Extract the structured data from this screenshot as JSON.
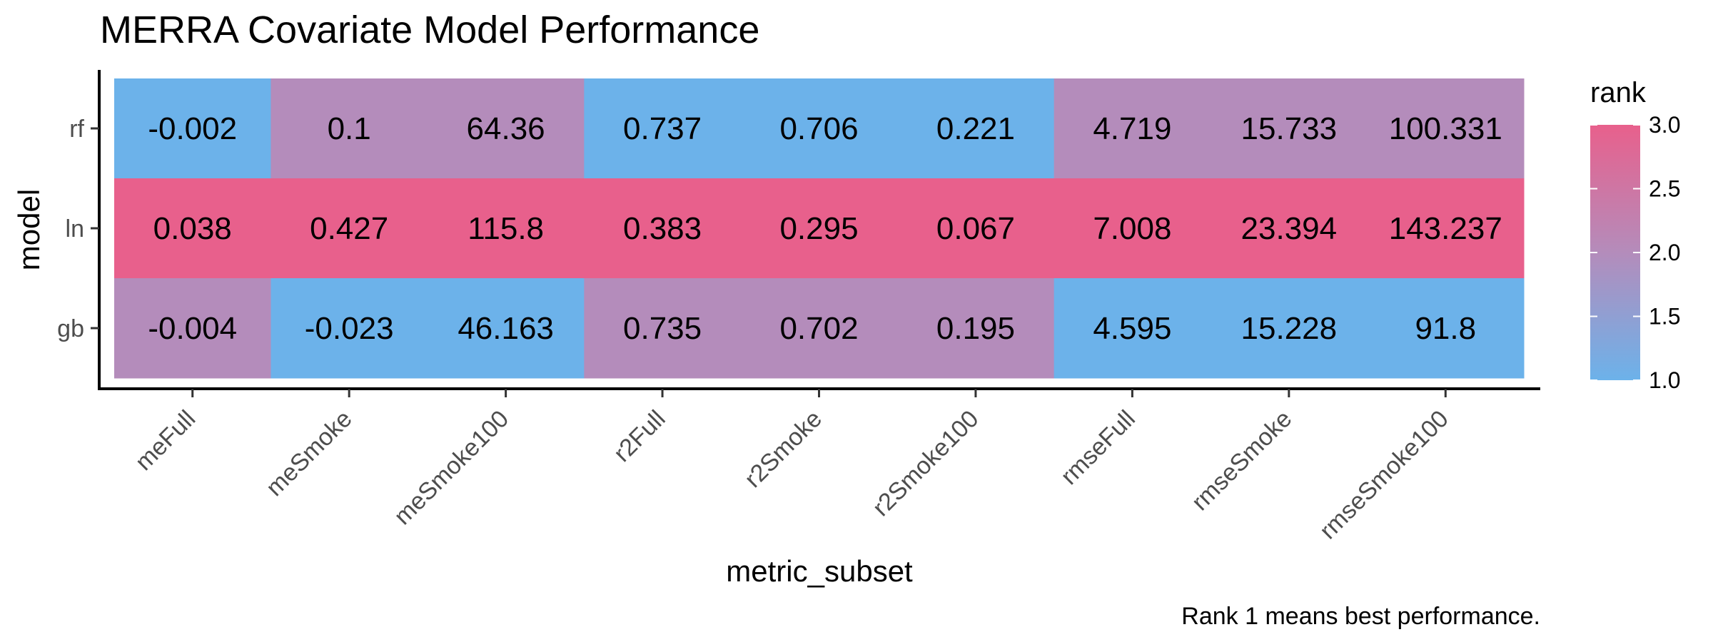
{
  "chart_data": {
    "type": "heatmap",
    "title": "MERRA Covariate Model Performance",
    "xlabel": "metric_subset",
    "ylabel": "model",
    "caption": "Rank 1 means best performance.",
    "x": [
      "meFull",
      "meSmoke",
      "meSmoke100",
      "r2Full",
      "r2Smoke",
      "r2Smoke100",
      "rmseFull",
      "rmseSmoke",
      "rmseSmoke100"
    ],
    "y": [
      "rf",
      "ln",
      "gb"
    ],
    "values": [
      [
        "-0.002",
        "0.1",
        "64.36",
        "0.737",
        "0.706",
        "0.221",
        "4.719",
        "15.733",
        "100.331"
      ],
      [
        "0.038",
        "0.427",
        "115.8",
        "0.383",
        "0.295",
        "0.067",
        "7.008",
        "23.394",
        "143.237"
      ],
      [
        "-0.004",
        "-0.023",
        "46.163",
        "0.735",
        "0.702",
        "0.195",
        "4.595",
        "15.228",
        "91.8"
      ]
    ],
    "rank": [
      [
        1,
        2,
        2,
        1,
        1,
        1,
        2,
        2,
        2
      ],
      [
        3,
        3,
        3,
        3,
        3,
        3,
        3,
        3,
        3
      ],
      [
        2,
        1,
        1,
        2,
        2,
        2,
        1,
        1,
        1
      ]
    ],
    "legend": {
      "title": "rank",
      "ticks": [
        "1.0",
        "1.5",
        "2.0",
        "2.5",
        "3.0"
      ],
      "range": [
        1.0,
        3.0
      ],
      "low_color": "#6cb2ea",
      "mid_color": "#b48cbb",
      "high_color": "#e8608c"
    }
  }
}
